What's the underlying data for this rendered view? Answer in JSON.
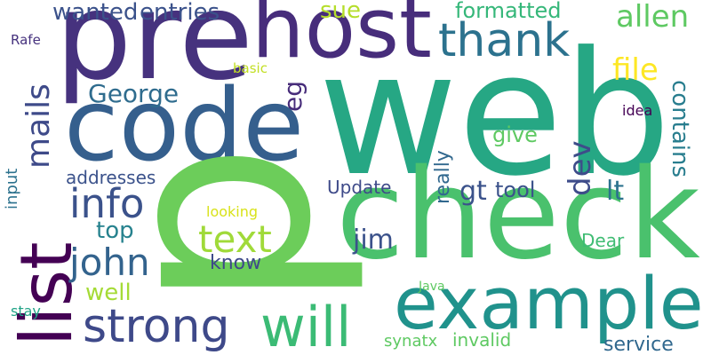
{
  "words": [
    "web",
    "pre",
    "code",
    "check",
    "p",
    "host",
    "example",
    "list",
    "strong",
    "will",
    "thank",
    "info",
    "john",
    "text",
    "mails",
    "George",
    "wanted",
    "entries",
    "sue",
    "formatted",
    "allen",
    "file",
    "eg",
    "dev",
    "gt",
    "lt",
    "contains",
    "give",
    "idea",
    "really",
    "tool",
    "Update",
    "addresses",
    "input",
    "Rafe",
    "basic",
    "looking",
    "top",
    "jim",
    "know",
    "Dear",
    "well",
    "Java",
    "stay",
    "synatx",
    "invalid",
    "service"
  ]
}
